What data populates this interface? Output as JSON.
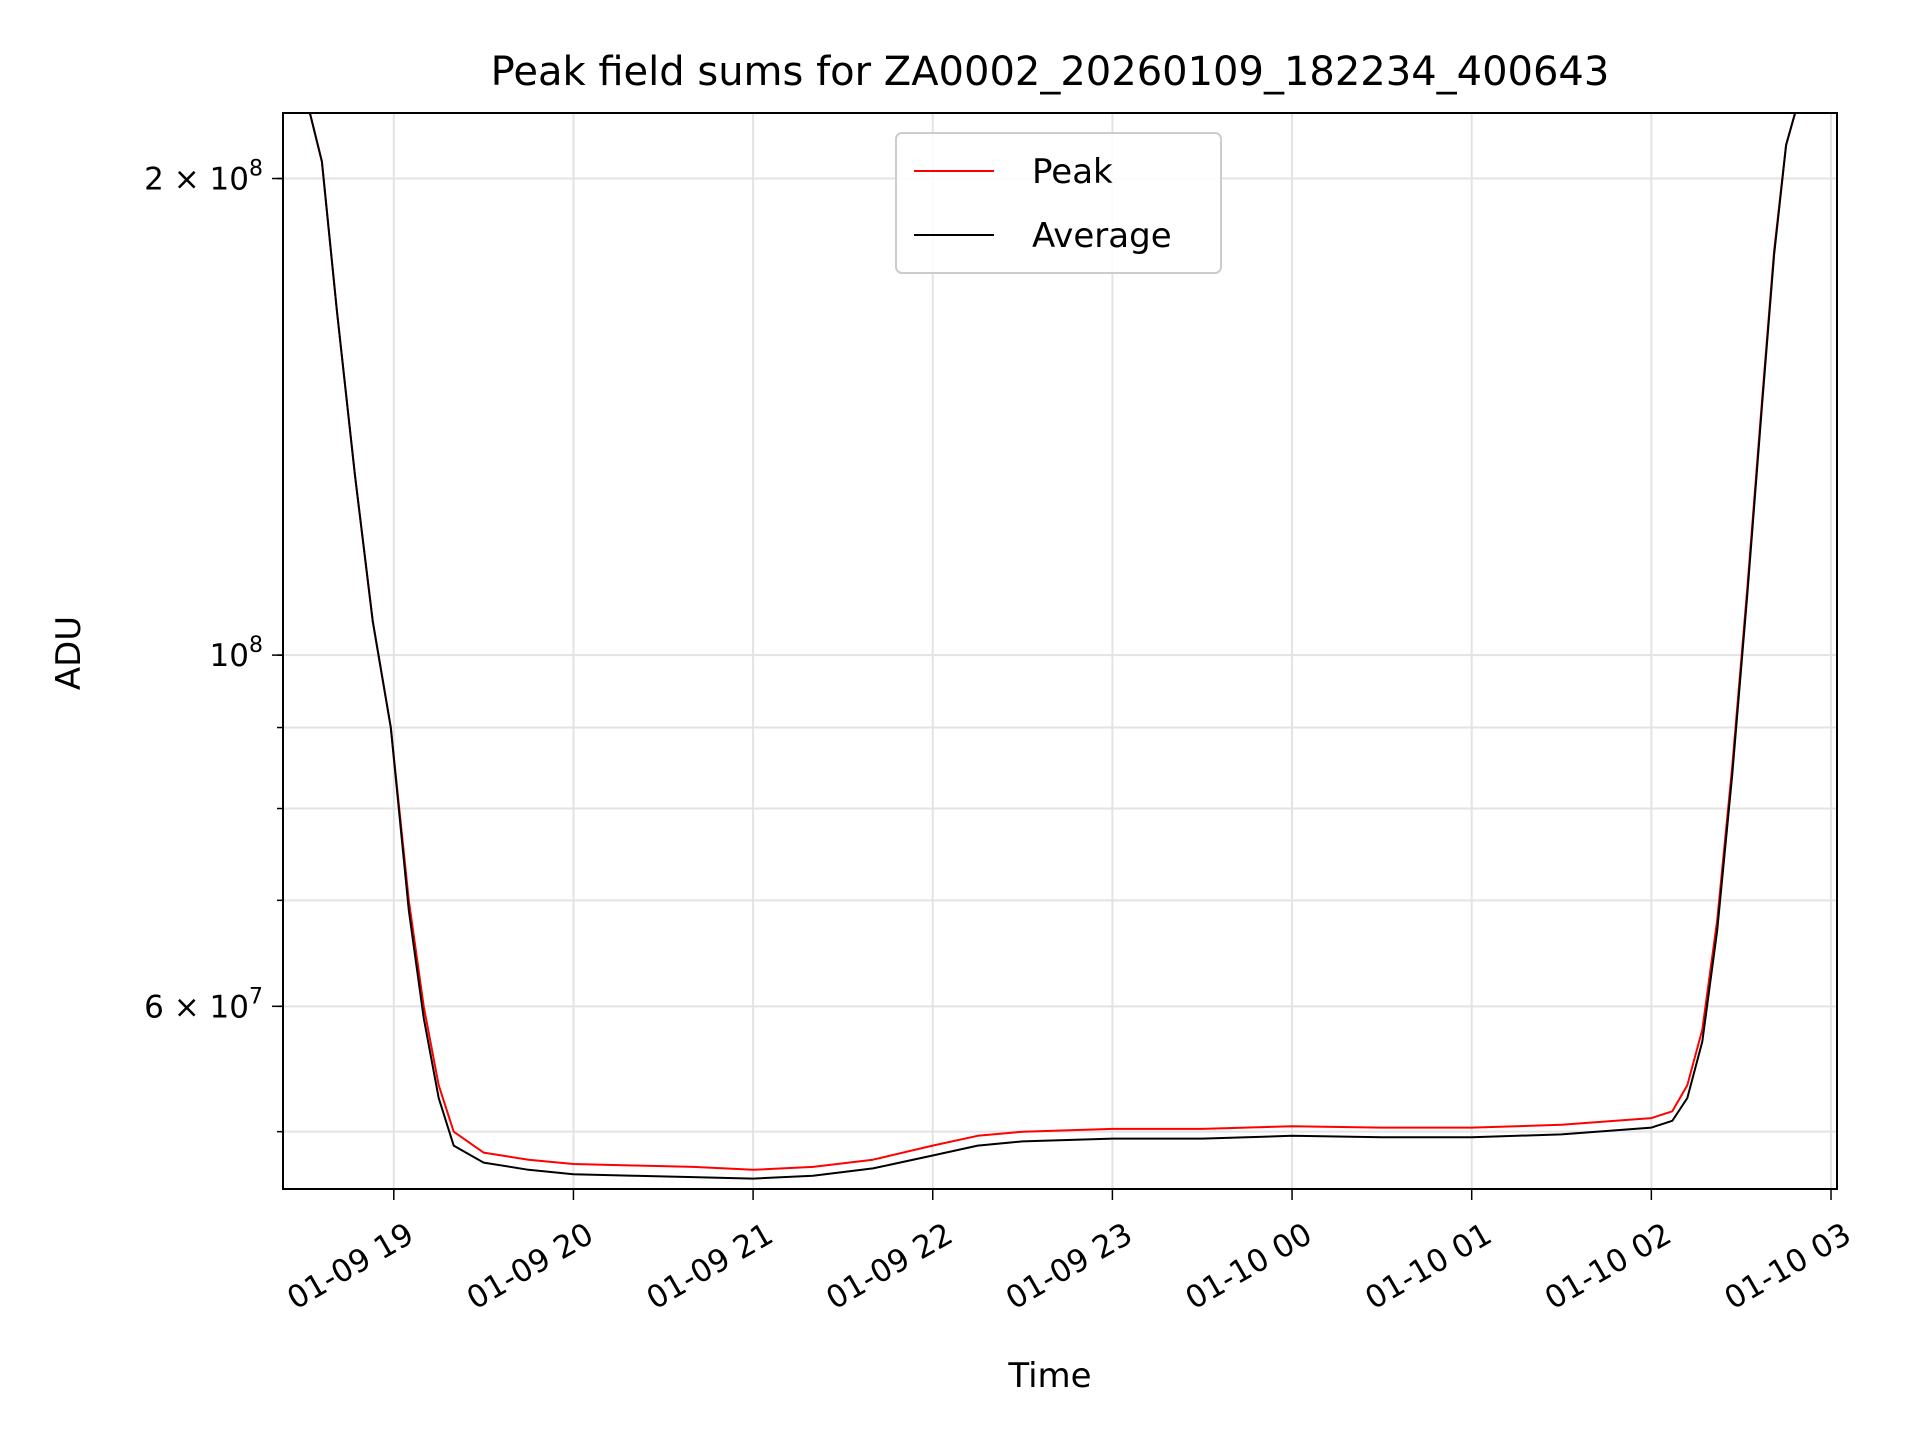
{
  "chart_data": {
    "type": "line",
    "title": "Peak field sums for ZA0002_20260109_182234_400643",
    "xlabel": "Time",
    "ylabel": "ADU",
    "yscale": "log",
    "grid": true,
    "legend_position": "upper center",
    "xlim": [
      "2026-01-09 18:23",
      "2026-01-10 03:02"
    ],
    "ylim": [
      46000000,
      220000000
    ],
    "x_ticks": [
      {
        "value": "2026-01-09 19:00",
        "label": "01-09 19"
      },
      {
        "value": "2026-01-09 20:00",
        "label": "01-09 20"
      },
      {
        "value": "2026-01-09 21:00",
        "label": "01-09 21"
      },
      {
        "value": "2026-01-09 22:00",
        "label": "01-09 22"
      },
      {
        "value": "2026-01-09 23:00",
        "label": "01-09 23"
      },
      {
        "value": "2026-01-10 00:00",
        "label": "01-10 00"
      },
      {
        "value": "2026-01-10 01:00",
        "label": "01-10 01"
      },
      {
        "value": "2026-01-10 02:00",
        "label": "01-10 02"
      },
      {
        "value": "2026-01-10 03:00",
        "label": "01-10 03"
      }
    ],
    "y_major_ticks": [
      {
        "value": 200000000,
        "mantissa": "2",
        "times": "×",
        "base": "10",
        "exp": "8"
      },
      {
        "value": 100000000,
        "mantissa": "",
        "times": "",
        "base": "10",
        "exp": "8"
      },
      {
        "value": 60000000,
        "mantissa": "6",
        "times": "×",
        "base": "10",
        "exp": "7"
      }
    ],
    "y_minor_ticks": [
      50000000,
      60000000,
      70000000,
      80000000,
      90000000,
      100000000,
      200000000
    ],
    "series": [
      {
        "name": "Peak",
        "color": "#ff0000",
        "points": [
          [
            "2026-01-09 18:23",
            220000000
          ],
          [
            "2026-01-09 18:32",
            220000000
          ],
          [
            "2026-01-09 18:36",
            205000000
          ],
          [
            "2026-01-09 18:41",
            165000000
          ],
          [
            "2026-01-09 18:47",
            130000000
          ],
          [
            "2026-01-09 18:53",
            105000000
          ],
          [
            "2026-01-09 18:59",
            90000000
          ],
          [
            "2026-01-09 19:05",
            70000000
          ],
          [
            "2026-01-09 19:10",
            60000000
          ],
          [
            "2026-01-09 19:15",
            53500000
          ],
          [
            "2026-01-09 19:20",
            50000000
          ],
          [
            "2026-01-09 19:30",
            48500000
          ],
          [
            "2026-01-09 19:45",
            48000000
          ],
          [
            "2026-01-09 20:00",
            47700000
          ],
          [
            "2026-01-09 20:20",
            47600000
          ],
          [
            "2026-01-09 20:40",
            47500000
          ],
          [
            "2026-01-09 21:00",
            47300000
          ],
          [
            "2026-01-09 21:20",
            47500000
          ],
          [
            "2026-01-09 21:40",
            48000000
          ],
          [
            "2026-01-09 22:00",
            49000000
          ],
          [
            "2026-01-09 22:15",
            49700000
          ],
          [
            "2026-01-09 22:30",
            50000000
          ],
          [
            "2026-01-09 23:00",
            50200000
          ],
          [
            "2026-01-09 23:30",
            50200000
          ],
          [
            "2026-01-10 00:00",
            50400000
          ],
          [
            "2026-01-10 00:30",
            50300000
          ],
          [
            "2026-01-10 01:00",
            50300000
          ],
          [
            "2026-01-10 01:30",
            50500000
          ],
          [
            "2026-01-10 02:00",
            51000000
          ],
          [
            "2026-01-10 02:07",
            51500000
          ],
          [
            "2026-01-10 02:12",
            53500000
          ],
          [
            "2026-01-10 02:17",
            58000000
          ],
          [
            "2026-01-10 02:22",
            68000000
          ],
          [
            "2026-01-10 02:27",
            85000000
          ],
          [
            "2026-01-10 02:32",
            110000000
          ],
          [
            "2026-01-10 02:37",
            145000000
          ],
          [
            "2026-01-10 02:41",
            180000000
          ],
          [
            "2026-01-10 02:45",
            210000000
          ],
          [
            "2026-01-10 02:48",
            220000000
          ],
          [
            "2026-01-10 03:02",
            220000000
          ]
        ]
      },
      {
        "name": "Average",
        "color": "#000000",
        "points": [
          [
            "2026-01-09 18:23",
            220000000
          ],
          [
            "2026-01-09 18:32",
            220000000
          ],
          [
            "2026-01-09 18:36",
            205000000
          ],
          [
            "2026-01-09 18:41",
            165000000
          ],
          [
            "2026-01-09 18:47",
            130000000
          ],
          [
            "2026-01-09 18:53",
            105000000
          ],
          [
            "2026-01-09 18:59",
            90000000
          ],
          [
            "2026-01-09 19:05",
            69000000
          ],
          [
            "2026-01-09 19:10",
            59000000
          ],
          [
            "2026-01-09 19:15",
            52500000
          ],
          [
            "2026-01-09 19:20",
            49000000
          ],
          [
            "2026-01-09 19:30",
            47800000
          ],
          [
            "2026-01-09 19:45",
            47300000
          ],
          [
            "2026-01-09 20:00",
            47000000
          ],
          [
            "2026-01-09 20:20",
            46900000
          ],
          [
            "2026-01-09 20:40",
            46800000
          ],
          [
            "2026-01-09 21:00",
            46700000
          ],
          [
            "2026-01-09 21:20",
            46900000
          ],
          [
            "2026-01-09 21:40",
            47400000
          ],
          [
            "2026-01-09 22:00",
            48300000
          ],
          [
            "2026-01-09 22:15",
            49000000
          ],
          [
            "2026-01-09 22:30",
            49300000
          ],
          [
            "2026-01-09 23:00",
            49500000
          ],
          [
            "2026-01-09 23:30",
            49500000
          ],
          [
            "2026-01-10 00:00",
            49700000
          ],
          [
            "2026-01-10 00:30",
            49600000
          ],
          [
            "2026-01-10 01:00",
            49600000
          ],
          [
            "2026-01-10 01:30",
            49800000
          ],
          [
            "2026-01-10 02:00",
            50300000
          ],
          [
            "2026-01-10 02:07",
            50800000
          ],
          [
            "2026-01-10 02:12",
            52500000
          ],
          [
            "2026-01-10 02:17",
            57000000
          ],
          [
            "2026-01-10 02:22",
            67000000
          ],
          [
            "2026-01-10 02:27",
            84000000
          ],
          [
            "2026-01-10 02:32",
            109000000
          ],
          [
            "2026-01-10 02:37",
            144000000
          ],
          [
            "2026-01-10 02:41",
            179000000
          ],
          [
            "2026-01-10 02:45",
            210000000
          ],
          [
            "2026-01-10 02:48",
            220000000
          ],
          [
            "2026-01-10 03:02",
            220000000
          ]
        ]
      }
    ]
  }
}
